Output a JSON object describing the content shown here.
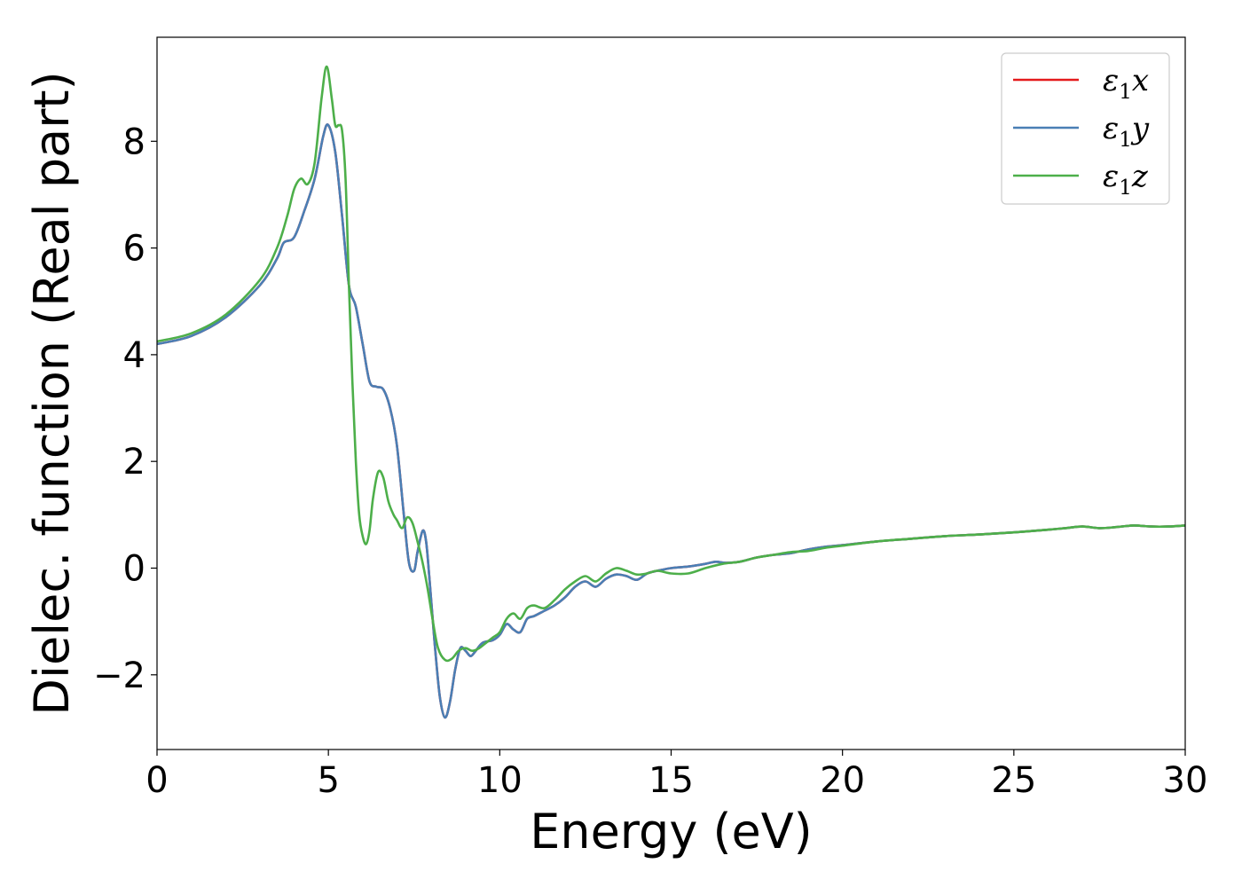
{
  "chart_data": {
    "type": "line",
    "title": "",
    "xlabel": "Energy (eV)",
    "ylabel": "Dielec. function (Real part)",
    "xlim": [
      0,
      30
    ],
    "ylim": [
      -3.4,
      9.95
    ],
    "xticks": [
      0,
      5,
      10,
      15,
      20,
      25,
      30
    ],
    "xtick_labels": [
      "0",
      "5",
      "10",
      "15",
      "20",
      "25",
      "30"
    ],
    "yticks": [
      -2,
      0,
      2,
      4,
      6,
      8
    ],
    "ytick_labels": [
      "−2",
      "0",
      "2",
      "4",
      "6",
      "8"
    ],
    "grid": false,
    "legend_position": "top-right",
    "series": [
      {
        "name": "ε₁x",
        "legend_base": "ε",
        "legend_sub": "1",
        "legend_var": "x",
        "color": "#e41a1c",
        "x": [
          0,
          1,
          2,
          3,
          3.5,
          3.7,
          4.0,
          4.3,
          4.6,
          4.85,
          5.0,
          5.2,
          5.4,
          5.6,
          5.8,
          6.0,
          6.2,
          6.4,
          6.6,
          6.8,
          7.0,
          7.2,
          7.35,
          7.5,
          7.6,
          7.75,
          7.85,
          7.95,
          8.1,
          8.25,
          8.4,
          8.55,
          8.7,
          8.85,
          9.0,
          9.15,
          9.3,
          9.5,
          9.8,
          10.0,
          10.2,
          10.4,
          10.6,
          10.8,
          11.0,
          11.3,
          11.6,
          11.9,
          12.2,
          12.5,
          12.8,
          13.1,
          13.4,
          13.7,
          14.0,
          14.3,
          14.6,
          15,
          15.5,
          16,
          16.3,
          16.6,
          17,
          17.5,
          18,
          18.5,
          19,
          19.5,
          20,
          21,
          22,
          23,
          24,
          25,
          26,
          26.5,
          27,
          27.5,
          28,
          28.5,
          29,
          29.5,
          30
        ],
        "y": [
          4.2,
          4.35,
          4.7,
          5.3,
          5.8,
          6.1,
          6.2,
          6.7,
          7.3,
          8.1,
          8.3,
          7.8,
          6.6,
          5.3,
          4.9,
          4.2,
          3.5,
          3.4,
          3.35,
          3.0,
          2.3,
          1.0,
          0.1,
          -0.05,
          0.3,
          0.7,
          0.5,
          -0.2,
          -1.4,
          -2.4,
          -2.8,
          -2.5,
          -1.9,
          -1.5,
          -1.55,
          -1.65,
          -1.55,
          -1.4,
          -1.35,
          -1.25,
          -1.05,
          -1.15,
          -1.2,
          -0.95,
          -0.9,
          -0.8,
          -0.7,
          -0.55,
          -0.35,
          -0.25,
          -0.35,
          -0.2,
          -0.12,
          -0.15,
          -0.22,
          -0.1,
          -0.05,
          0.0,
          0.03,
          0.08,
          0.12,
          0.1,
          0.12,
          0.2,
          0.25,
          0.28,
          0.35,
          0.4,
          0.43,
          0.5,
          0.55,
          0.6,
          0.63,
          0.67,
          0.72,
          0.75,
          0.78,
          0.75,
          0.77,
          0.8,
          0.78,
          0.78,
          0.8
        ]
      },
      {
        "name": "ε₁y",
        "legend_base": "ε",
        "legend_sub": "1",
        "legend_var": "y",
        "color": "#4a7fb5",
        "x": [
          0,
          1,
          2,
          3,
          3.5,
          3.7,
          4.0,
          4.3,
          4.6,
          4.85,
          5.0,
          5.2,
          5.4,
          5.6,
          5.8,
          6.0,
          6.2,
          6.4,
          6.6,
          6.8,
          7.0,
          7.2,
          7.35,
          7.5,
          7.6,
          7.75,
          7.85,
          7.95,
          8.1,
          8.25,
          8.4,
          8.55,
          8.7,
          8.85,
          9.0,
          9.15,
          9.3,
          9.5,
          9.8,
          10.0,
          10.2,
          10.4,
          10.6,
          10.8,
          11.0,
          11.3,
          11.6,
          11.9,
          12.2,
          12.5,
          12.8,
          13.1,
          13.4,
          13.7,
          14.0,
          14.3,
          14.6,
          15,
          15.5,
          16,
          16.3,
          16.6,
          17,
          17.5,
          18,
          18.5,
          19,
          19.5,
          20,
          21,
          22,
          23,
          24,
          25,
          26,
          26.5,
          27,
          27.5,
          28,
          28.5,
          29,
          29.5,
          30
        ],
        "y": [
          4.2,
          4.35,
          4.7,
          5.3,
          5.8,
          6.1,
          6.2,
          6.7,
          7.3,
          8.1,
          8.3,
          7.8,
          6.6,
          5.3,
          4.9,
          4.2,
          3.5,
          3.4,
          3.35,
          3.0,
          2.3,
          1.0,
          0.1,
          -0.05,
          0.3,
          0.7,
          0.5,
          -0.2,
          -1.4,
          -2.4,
          -2.8,
          -2.5,
          -1.9,
          -1.5,
          -1.55,
          -1.65,
          -1.55,
          -1.4,
          -1.35,
          -1.25,
          -1.05,
          -1.15,
          -1.2,
          -0.95,
          -0.9,
          -0.8,
          -0.7,
          -0.55,
          -0.35,
          -0.25,
          -0.35,
          -0.2,
          -0.12,
          -0.15,
          -0.22,
          -0.1,
          -0.05,
          0.0,
          0.03,
          0.08,
          0.12,
          0.1,
          0.12,
          0.2,
          0.25,
          0.28,
          0.35,
          0.4,
          0.43,
          0.5,
          0.55,
          0.6,
          0.63,
          0.67,
          0.72,
          0.75,
          0.78,
          0.75,
          0.77,
          0.8,
          0.78,
          0.78,
          0.8
        ]
      },
      {
        "name": "ε₁z",
        "legend_base": "ε",
        "legend_sub": "1",
        "legend_var": "z",
        "color": "#4daf4a",
        "x": [
          0,
          1,
          2,
          3,
          3.5,
          3.8,
          4.0,
          4.2,
          4.4,
          4.6,
          4.8,
          4.95,
          5.1,
          5.2,
          5.3,
          5.4,
          5.5,
          5.6,
          5.7,
          5.8,
          5.9,
          6.0,
          6.1,
          6.2,
          6.3,
          6.45,
          6.6,
          6.75,
          6.9,
          7.0,
          7.15,
          7.3,
          7.45,
          7.6,
          7.75,
          7.9,
          8.05,
          8.2,
          8.4,
          8.6,
          8.8,
          9.0,
          9.2,
          9.4,
          9.6,
          9.8,
          10.0,
          10.2,
          10.4,
          10.6,
          10.8,
          11.0,
          11.3,
          11.6,
          11.9,
          12.2,
          12.5,
          12.8,
          13.1,
          13.4,
          13.7,
          14.0,
          14.3,
          14.6,
          15,
          15.5,
          16,
          16.5,
          17,
          17.5,
          18,
          18.5,
          19,
          19.5,
          20,
          21,
          22,
          23,
          24,
          25,
          26,
          26.5,
          27,
          27.5,
          28,
          28.5,
          29,
          29.5,
          30
        ],
        "y": [
          4.25,
          4.4,
          4.75,
          5.4,
          6.0,
          6.6,
          7.1,
          7.3,
          7.2,
          7.6,
          8.8,
          9.4,
          8.8,
          8.3,
          8.3,
          8.2,
          7.3,
          5.3,
          3.5,
          2.0,
          1.0,
          0.6,
          0.45,
          0.7,
          1.3,
          1.8,
          1.7,
          1.25,
          1.0,
          0.9,
          0.75,
          0.95,
          0.85,
          0.5,
          0.1,
          -0.4,
          -1.0,
          -1.5,
          -1.72,
          -1.7,
          -1.55,
          -1.5,
          -1.55,
          -1.5,
          -1.4,
          -1.3,
          -1.2,
          -0.95,
          -0.85,
          -0.95,
          -0.75,
          -0.7,
          -0.75,
          -0.6,
          -0.4,
          -0.25,
          -0.15,
          -0.25,
          -0.1,
          0.0,
          -0.05,
          -0.12,
          -0.1,
          -0.05,
          -0.1,
          -0.1,
          0.0,
          0.08,
          0.12,
          0.2,
          0.25,
          0.3,
          0.32,
          0.38,
          0.42,
          0.5,
          0.55,
          0.6,
          0.63,
          0.67,
          0.72,
          0.75,
          0.78,
          0.75,
          0.77,
          0.8,
          0.78,
          0.78,
          0.8
        ]
      }
    ]
  }
}
